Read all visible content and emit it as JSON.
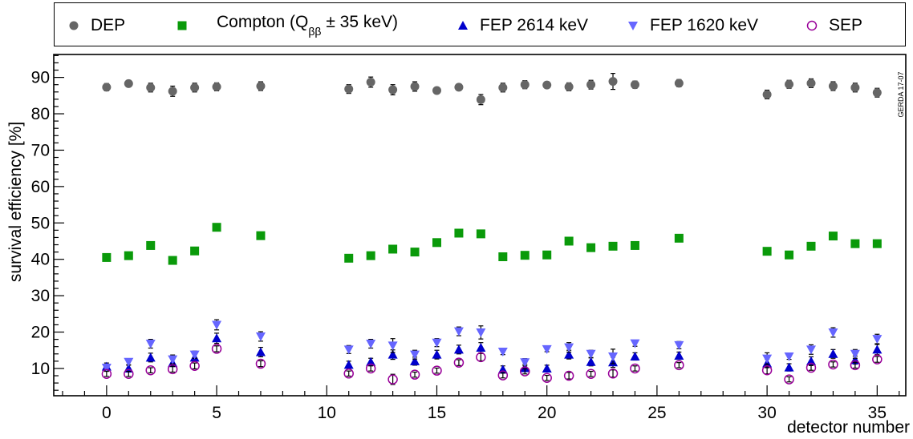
{
  "chart_data": {
    "type": "scatter",
    "xlabel": "detector number",
    "ylabel": "survival efficiency [%]",
    "xlim": [
      -2.4,
      36.3
    ],
    "ylim": [
      2.5,
      96.3
    ],
    "x_ticks": [
      0,
      5,
      10,
      15,
      20,
      25,
      30,
      35
    ],
    "y_ticks": [
      10,
      20,
      30,
      40,
      50,
      60,
      70,
      80,
      90
    ],
    "watermark": "GERDA 17-07",
    "legend": {
      "placement": "top",
      "entries": [
        {
          "label": "DEP",
          "marker": "circle-filled",
          "color": "#666666"
        },
        {
          "label_main": "Compton (Q",
          "label_sub": "ββ",
          "label_rest": " ± 35 keV)",
          "marker": "square",
          "color": "#0a9a0a"
        },
        {
          "label": "FEP 2614 keV",
          "marker": "triangle-up",
          "color": "#0000cc"
        },
        {
          "label": "FEP 1620 keV",
          "marker": "triangle-down",
          "color": "#6666ff"
        },
        {
          "label": "SEP",
          "marker": "circle-open",
          "color": "#990099"
        }
      ]
    },
    "x": [
      0,
      1,
      2,
      3,
      4,
      5,
      7,
      11,
      12,
      13,
      14,
      15,
      16,
      17,
      18,
      19,
      20,
      21,
      22,
      23,
      24,
      26,
      30,
      31,
      32,
      33,
      34,
      35
    ],
    "series": [
      {
        "name": "DEP",
        "values": [
          87.3,
          88.3,
          87.2,
          86.2,
          87.2,
          87.4,
          87.6,
          86.8,
          88.7,
          86.6,
          87.5,
          86.4,
          87.3,
          83.9,
          87.2,
          88.0,
          87.9,
          87.4,
          88.0,
          88.9,
          88.0,
          88.4,
          85.3,
          88.1,
          88.4,
          87.6,
          87.2,
          85.8
        ],
        "err": [
          1.0,
          0.7,
          1.2,
          1.4,
          1.2,
          1.1,
          1.2,
          1.2,
          1.4,
          1.4,
          1.3,
          0.6,
          0.7,
          1.4,
          1.2,
          1.1,
          0.8,
          1.1,
          1.2,
          2.2,
          1.0,
          1.0,
          1.2,
          1.1,
          1.2,
          1.2,
          1.2,
          1.2
        ]
      },
      {
        "name": "Compton",
        "values": [
          40.5,
          41.0,
          43.8,
          39.7,
          42.3,
          48.8,
          46.5,
          40.3,
          41.0,
          42.8,
          42.0,
          44.6,
          47.2,
          47.0,
          40.7,
          41.1,
          41.2,
          45.0,
          43.2,
          43.6,
          43.8,
          45.8,
          42.2,
          41.2,
          43.6,
          46.4,
          44.3,
          44.3
        ],
        "err": [
          0.4,
          0.4,
          0.4,
          0.4,
          0.4,
          0.4,
          0.4,
          0.4,
          0.4,
          0.4,
          0.4,
          0.4,
          0.4,
          0.4,
          0.4,
          0.4,
          0.4,
          0.4,
          0.4,
          0.4,
          0.4,
          0.4,
          0.4,
          0.4,
          0.4,
          0.4,
          0.4,
          0.4
        ]
      },
      {
        "name": "FEP 2614 keV",
        "values": [
          10.5,
          10.0,
          13.0,
          11.5,
          13.0,
          18.3,
          14.5,
          11.0,
          11.8,
          13.8,
          12.0,
          13.8,
          15.2,
          15.7,
          9.7,
          10.1,
          10.0,
          13.8,
          11.8,
          11.7,
          13.3,
          13.5,
          11.4,
          10.3,
          12.0,
          14.0,
          12.3,
          15.2
        ],
        "err": [
          1.0,
          1.0,
          1.2,
          1.0,
          1.1,
          1.4,
          1.3,
          1.0,
          1.0,
          1.3,
          1.1,
          1.2,
          1.2,
          1.4,
          1.0,
          1.0,
          0.9,
          1.2,
          1.1,
          1.4,
          1.0,
          1.0,
          1.2,
          1.0,
          1.2,
          1.2,
          1.1,
          1.4
        ]
      },
      {
        "name": "FEP 1620 keV",
        "values": [
          10.2,
          11.8,
          16.8,
          12.5,
          13.8,
          22.0,
          18.8,
          15.2,
          16.8,
          16.3,
          13.8,
          17.1,
          20.2,
          19.9,
          14.6,
          11.7,
          15.3,
          15.8,
          14.0,
          13.3,
          16.9,
          16.4,
          12.7,
          13.3,
          15.2,
          19.9,
          14.0,
          18.1
        ],
        "err": [
          0.8,
          0.9,
          1.2,
          1.2,
          1.0,
          1.4,
          1.3,
          1.1,
          1.2,
          1.9,
          1.2,
          1.1,
          1.2,
          1.8,
          0.8,
          1.0,
          0.7,
          1.3,
          1.0,
          2.0,
          0.8,
          1.0,
          1.6,
          0.8,
          1.3,
          1.3,
          1.2,
          1.3
        ]
      },
      {
        "name": "SEP",
        "values": [
          8.5,
          8.5,
          9.5,
          9.8,
          10.7,
          15.4,
          11.3,
          8.6,
          10.0,
          7.0,
          8.3,
          9.4,
          11.6,
          13.1,
          8.1,
          9.2,
          7.4,
          8.0,
          8.5,
          8.6,
          10.0,
          10.9,
          9.5,
          7.0,
          10.2,
          11.1,
          10.9,
          12.5
        ],
        "err": [
          0.7,
          0.7,
          0.7,
          0.8,
          0.8,
          0.8,
          0.8,
          0.7,
          0.7,
          1.4,
          0.7,
          0.7,
          0.8,
          1.0,
          0.7,
          0.7,
          0.7,
          0.9,
          0.7,
          1.0,
          0.7,
          0.7,
          1.0,
          0.7,
          0.7,
          0.7,
          0.8,
          0.8
        ]
      }
    ]
  }
}
